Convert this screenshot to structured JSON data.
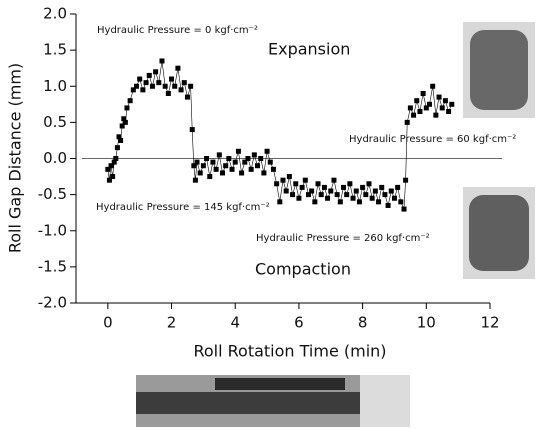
{
  "chart_data": {
    "type": "scatter",
    "x_label": "Roll Rotation Time (min)",
    "y_label": "Roll Gap Distance (mm)",
    "xlim": [
      -1,
      12
    ],
    "xticks": [
      0,
      2,
      4,
      6,
      8,
      10,
      12
    ],
    "ylim": [
      -2,
      2
    ],
    "yticks": [
      {
        "value": -2,
        "label": "-2.0"
      },
      -1.5,
      {
        "value": -1,
        "label": "-1.0"
      },
      -0.5,
      {
        "value": 0,
        "label": "0.0"
      },
      0.5,
      {
        "value": 1,
        "label": "1.0"
      },
      1.5,
      {
        "value": 2,
        "label": "2.0"
      }
    ],
    "reference_line": 0,
    "color": "#000000",
    "annotations": [
      "Hydraulic Pressure = 0 kgf·cm⁻²",
      "Expansion",
      "Hydraulic Pressure = 60 kgf·cm⁻²",
      "Hydraulic Pressure = 145 kgf·cm⁻²",
      "Hydraulic Pressure = 260 kgf·cm⁻²",
      "Compaction"
    ],
    "x": [
      0.0,
      0.05,
      0.1,
      0.15,
      0.2,
      0.25,
      0.3,
      0.35,
      0.4,
      0.45,
      0.5,
      0.55,
      0.6,
      0.7,
      0.8,
      0.9,
      1.0,
      1.1,
      1.2,
      1.3,
      1.4,
      1.5,
      1.6,
      1.7,
      1.8,
      1.9,
      2.0,
      2.1,
      2.2,
      2.3,
      2.4,
      2.5,
      2.6,
      2.65,
      2.7,
      2.75,
      2.8,
      2.9,
      3.0,
      3.1,
      3.2,
      3.3,
      3.4,
      3.5,
      3.6,
      3.7,
      3.8,
      3.9,
      4.0,
      4.1,
      4.2,
      4.3,
      4.4,
      4.5,
      4.6,
      4.7,
      4.8,
      4.9,
      5.0,
      5.1,
      5.2,
      5.3,
      5.4,
      5.5,
      5.6,
      5.7,
      5.8,
      5.9,
      6.0,
      6.1,
      6.2,
      6.3,
      6.4,
      6.5,
      6.6,
      6.7,
      6.8,
      6.9,
      7.0,
      7.1,
      7.2,
      7.3,
      7.4,
      7.5,
      7.6,
      7.7,
      7.8,
      7.9,
      8.0,
      8.1,
      8.2,
      8.3,
      8.4,
      8.5,
      8.6,
      8.7,
      8.8,
      8.9,
      9.0,
      9.1,
      9.2,
      9.3,
      9.35,
      9.4,
      9.5,
      9.6,
      9.7,
      9.8,
      9.9,
      10.0,
      10.1,
      10.2,
      10.3,
      10.4,
      10.5,
      10.6,
      10.7,
      10.8
    ],
    "values": [
      -0.15,
      -0.3,
      -0.1,
      -0.25,
      -0.05,
      0.0,
      0.15,
      0.3,
      0.25,
      0.45,
      0.55,
      0.5,
      0.7,
      0.8,
      0.95,
      1.0,
      1.1,
      0.95,
      1.05,
      1.15,
      1.0,
      1.2,
      1.05,
      1.35,
      1.0,
      0.9,
      1.1,
      1.0,
      1.25,
      0.95,
      1.05,
      0.85,
      1.0,
      0.4,
      -0.1,
      -0.3,
      -0.05,
      -0.2,
      -0.1,
      0.0,
      -0.25,
      -0.05,
      -0.15,
      0.05,
      -0.2,
      -0.1,
      0.0,
      -0.15,
      -0.05,
      0.1,
      -0.2,
      -0.05,
      0.0,
      -0.15,
      0.05,
      -0.1,
      0.0,
      -0.2,
      0.1,
      -0.05,
      -0.15,
      -0.35,
      -0.6,
      -0.3,
      -0.45,
      -0.25,
      -0.5,
      -0.35,
      -0.55,
      -0.4,
      -0.3,
      -0.5,
      -0.45,
      -0.6,
      -0.35,
      -0.5,
      -0.4,
      -0.55,
      -0.45,
      -0.3,
      -0.5,
      -0.6,
      -0.4,
      -0.5,
      -0.35,
      -0.55,
      -0.45,
      -0.6,
      -0.4,
      -0.5,
      -0.35,
      -0.55,
      -0.45,
      -0.6,
      -0.4,
      -0.5,
      -0.65,
      -0.45,
      -0.55,
      -0.4,
      -0.6,
      -0.7,
      -0.3,
      0.5,
      0.7,
      0.6,
      0.8,
      0.65,
      0.9,
      0.7,
      0.75,
      1.0,
      0.6,
      0.85,
      0.7,
      0.8,
      0.65,
      0.75
    ]
  }
}
